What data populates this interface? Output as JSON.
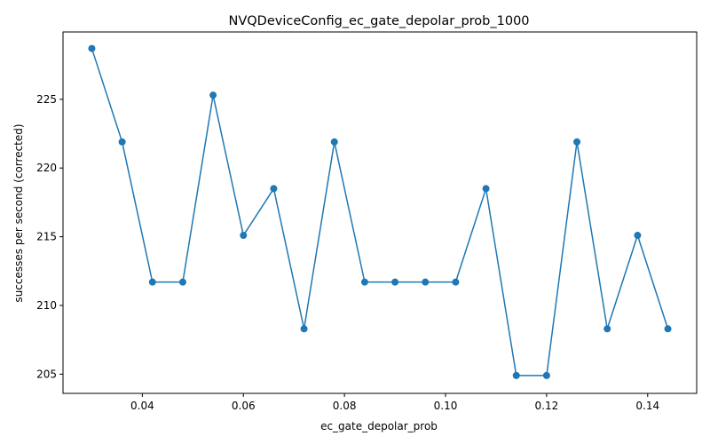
{
  "chart_data": {
    "type": "line",
    "title": "NVQDeviceConfig_ec_gate_depolar_prob_1000",
    "xlabel": "ec_gate_depolar_prob",
    "ylabel": "successes per second (corrected)",
    "xlim": [
      0.0243,
      0.1497
    ],
    "ylim": [
      203.6,
      229.9
    ],
    "xticks": [
      0.04,
      0.06,
      0.08,
      0.1,
      0.12,
      0.14
    ],
    "xtick_labels": [
      "0.04",
      "0.06",
      "0.08",
      "0.10",
      "0.12",
      "0.14"
    ],
    "yticks": [
      205,
      210,
      215,
      220,
      225
    ],
    "ytick_labels": [
      "205",
      "210",
      "215",
      "220",
      "225"
    ],
    "grid": false,
    "series": [
      {
        "color": "#1f77b4",
        "marker": "circle",
        "x": [
          0.03,
          0.036,
          0.042,
          0.048,
          0.054,
          0.06,
          0.066,
          0.072,
          0.078,
          0.084,
          0.09,
          0.096,
          0.102,
          0.108,
          0.114,
          0.12,
          0.126,
          0.132,
          0.138,
          0.144
        ],
        "y": [
          228.7,
          221.9,
          211.7,
          211.7,
          225.3,
          215.1,
          218.5,
          208.3,
          221.9,
          211.7,
          211.7,
          211.7,
          211.7,
          218.5,
          204.9,
          204.9,
          221.9,
          208.3,
          215.1,
          208.3
        ]
      }
    ]
  }
}
